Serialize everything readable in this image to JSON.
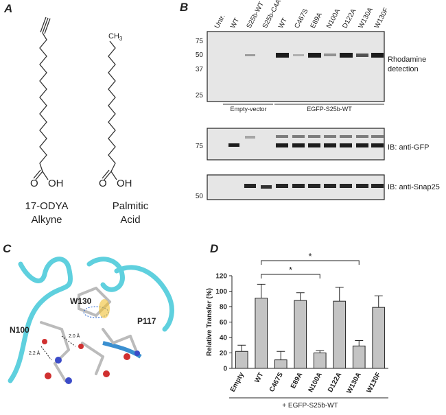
{
  "panel_a": {
    "label": "A",
    "molecules": [
      {
        "name": [
          "17-ODYA",
          "Alkyne"
        ],
        "carbonyl": "O",
        "hydroxyl": "OH"
      },
      {
        "top_group": "CH",
        "top_group_subscript": "3",
        "name": [
          "Palmitic",
          "Acid"
        ],
        "carbonyl": "O",
        "hydroxyl": "OH"
      }
    ]
  },
  "panel_b": {
    "label": "B",
    "lanes": [
      "Untr.",
      "WT",
      "S25b-WT",
      "S25b-C4A",
      "WT",
      "C467S",
      "E89A",
      "N100A",
      "D122A",
      "W130A",
      "W130F"
    ],
    "blots": [
      {
        "markers": [
          75,
          50,
          37,
          25
        ],
        "label": [
          "Rhodamine",
          "detection"
        ]
      },
      {
        "markers": [
          75
        ],
        "label": [
          "IB: anti-GFP"
        ]
      },
      {
        "markers": [
          50
        ],
        "label": [
          "IB: anti-Snap25"
        ]
      }
    ],
    "groups": [
      "Empty-vector",
      "EGFP-S25b-WT"
    ]
  },
  "panel_c": {
    "label": "C",
    "residues": [
      "W130",
      "N100",
      "P117"
    ],
    "distances": [
      "2.0 Å",
      "2.2 Å"
    ]
  },
  "chart_data": {
    "panel_label": "D",
    "type": "bar",
    "ylabel": "Relative Transfer (%)",
    "xlabel": "+ EGFP-S25b-WT",
    "categories": [
      "Empty",
      "WT",
      "C467S",
      "E89A",
      "N100A",
      "D122A",
      "W130A",
      "W130F"
    ],
    "values": [
      22,
      91,
      11,
      88,
      20,
      87,
      29,
      79
    ],
    "errors": [
      8,
      18,
      11,
      10,
      3,
      18,
      7,
      15
    ],
    "color": "#c4c4c4",
    "ylim": [
      0,
      120
    ],
    "yticks": [
      0,
      20,
      40,
      60,
      80,
      100,
      120
    ],
    "grid": false,
    "significance": [
      {
        "from": "WT",
        "to": "W130A",
        "text": "*"
      },
      {
        "from": "WT",
        "to": "N100A",
        "text": "*"
      }
    ]
  }
}
